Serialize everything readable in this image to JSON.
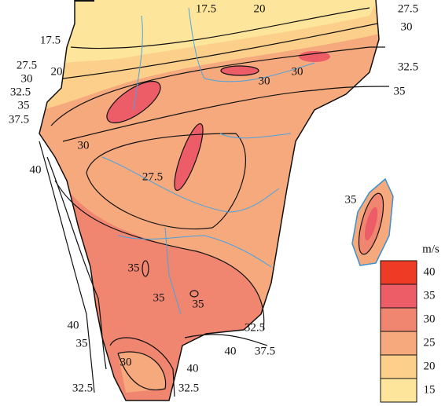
{
  "legend": {
    "unit": "m/s",
    "items": [
      {
        "value": 40,
        "color": "#ee3b26"
      },
      {
        "value": 35,
        "color": "#ec5d68"
      },
      {
        "value": 30,
        "color": "#f08570"
      },
      {
        "value": 25,
        "color": "#f6a97c"
      },
      {
        "value": 20,
        "color": "#fcd08b"
      },
      {
        "value": 15,
        "color": "#fde59c"
      }
    ]
  },
  "contour_labels": [
    17.5,
    20,
    27.5,
    30,
    17.5,
    20,
    27.5,
    30,
    32.5,
    35,
    37.5,
    30,
    30,
    32.5,
    35,
    30,
    40,
    27.5,
    35,
    35,
    35,
    35,
    40,
    32.5,
    35,
    40,
    37.5,
    30,
    40,
    32.5,
    32.5
  ]
}
